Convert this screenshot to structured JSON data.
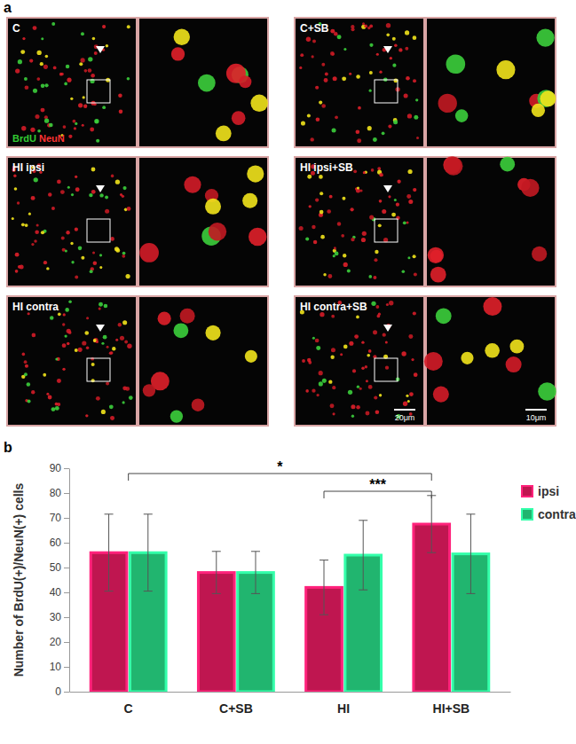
{
  "figure": {
    "panel_labels": [
      "a",
      "b"
    ],
    "images": [
      {
        "label": "C"
      },
      {
        "label": "C+SB"
      },
      {
        "label": "HI ipsi"
      },
      {
        "label": "HI ipsi+SB"
      },
      {
        "label": "HI contra"
      },
      {
        "label": "HI contra+SB"
      }
    ],
    "stain_labels": [
      {
        "text": "BrdU",
        "color": "#33cc33"
      },
      {
        "text": "NeuN",
        "color": "#ff3333"
      }
    ],
    "scale_bars": [
      "20μm",
      "10μm"
    ]
  },
  "chart_data": {
    "type": "bar",
    "y_label": "Number of BrdU(+)/NeuN(+) cells",
    "categories": [
      "C",
      "C+SB",
      "HI",
      "HI+SB"
    ],
    "series": [
      {
        "name": "ipsi",
        "color": "#bf1650",
        "values": [
          56,
          48,
          42,
          67.5
        ],
        "errors": [
          15.5,
          8.5,
          11,
          11.5
        ]
      },
      {
        "name": "contra",
        "color": "#21b56f",
        "values": [
          56,
          48,
          55,
          55.5
        ],
        "errors": [
          15.5,
          8.5,
          14,
          16
        ]
      }
    ],
    "ylim": [
      0,
      90
    ],
    "yticks": [
      0,
      10,
      20,
      30,
      40,
      50,
      60,
      70,
      80,
      90
    ],
    "grid": false,
    "legend": "top-right",
    "annotations": [
      {
        "text": "*",
        "categories": [
          "C",
          "HI+SB"
        ]
      },
      {
        "text": "***",
        "categories": [
          "HI",
          "HI+SB"
        ]
      }
    ]
  }
}
